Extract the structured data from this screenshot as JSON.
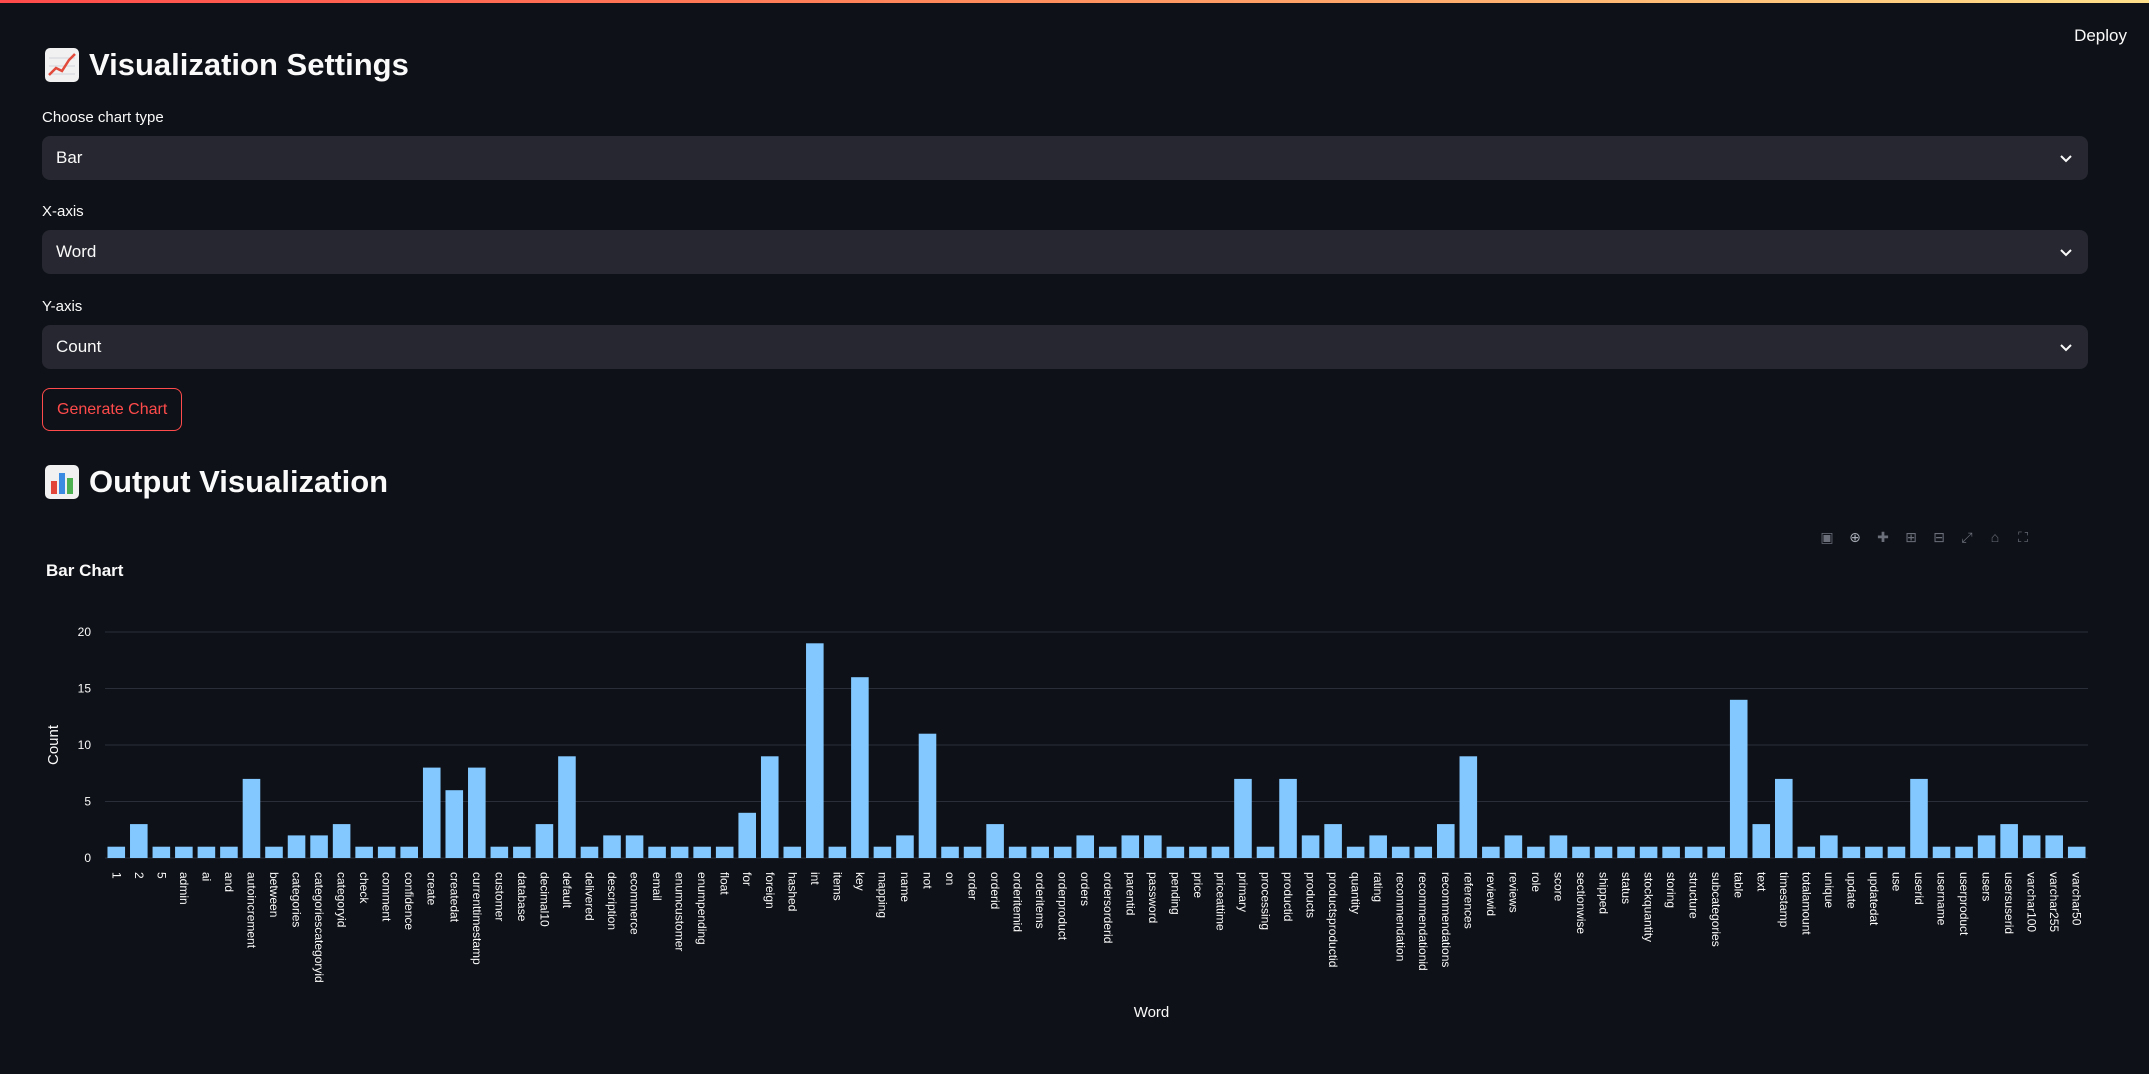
{
  "header": {
    "deploy_label": "Deploy"
  },
  "settings": {
    "title": "Visualization Settings",
    "chart_type_label": "Choose chart type",
    "chart_type_value": "Bar",
    "x_axis_label": "X-axis",
    "x_axis_value": "Word",
    "y_axis_label": "Y-axis",
    "y_axis_value": "Count",
    "generate_label": "Generate Chart"
  },
  "output": {
    "title": "Output Visualization"
  },
  "toolbar": [
    "camera-icon",
    "zoom-icon",
    "pan-icon",
    "zoom-in-icon",
    "zoom-out-icon",
    "autoscale-icon",
    "home-icon",
    "fullscreen-icon"
  ],
  "chart_data": {
    "type": "bar",
    "title": "Bar Chart",
    "xlabel": "Word",
    "ylabel": "Count",
    "ylim": [
      0,
      21
    ],
    "yticks": [
      0,
      5,
      10,
      15,
      20
    ],
    "bar_color": "#83c9ff",
    "grid": true,
    "categories": [
      "1",
      "2",
      "5",
      "admin",
      "ai",
      "and",
      "autoincrement",
      "between",
      "categories",
      "categoriescategoryid",
      "categoryid",
      "check",
      "comment",
      "confidence",
      "create",
      "createdat",
      "currenttimestamp",
      "customer",
      "database",
      "decimal10",
      "default",
      "delivered",
      "description",
      "ecommerce",
      "email",
      "enumcustomer",
      "enumpending",
      "float",
      "for",
      "foreign",
      "hashed",
      "int",
      "items",
      "key",
      "mapping",
      "name",
      "not",
      "on",
      "order",
      "orderid",
      "orderitemid",
      "orderitems",
      "orderproduct",
      "orders",
      "ordersorderid",
      "parentid",
      "password",
      "pending",
      "price",
      "priceattime",
      "primary",
      "processing",
      "productid",
      "products",
      "productsproductid",
      "quantity",
      "rating",
      "recommendation",
      "recommendationid",
      "recommendations",
      "references",
      "reviewid",
      "reviews",
      "role",
      "score",
      "sectionwise",
      "shipped",
      "status",
      "stockquantity",
      "storing",
      "structure",
      "subcategories",
      "table",
      "text",
      "timestamp",
      "totalamount",
      "unique",
      "update",
      "updatedat",
      "use",
      "userid",
      "username",
      "userproduct",
      "users",
      "usersuserid",
      "varchar100",
      "varchar255",
      "varchar50"
    ],
    "values": [
      1,
      3,
      1,
      1,
      1,
      1,
      7,
      1,
      2,
      2,
      3,
      1,
      1,
      1,
      8,
      6,
      8,
      1,
      1,
      3,
      9,
      1,
      2,
      2,
      1,
      1,
      1,
      1,
      4,
      9,
      1,
      19,
      1,
      16,
      1,
      2,
      11,
      1,
      1,
      3,
      1,
      1,
      1,
      2,
      1,
      2,
      2,
      1,
      1,
      1,
      7,
      1,
      7,
      2,
      3,
      1,
      2,
      1,
      1,
      3,
      9,
      1,
      2,
      1,
      2,
      1,
      1,
      1,
      1,
      1,
      1,
      1,
      14,
      3,
      7,
      1,
      2,
      1,
      1,
      1,
      7,
      1,
      1,
      2,
      3,
      2,
      2,
      1
    ]
  }
}
